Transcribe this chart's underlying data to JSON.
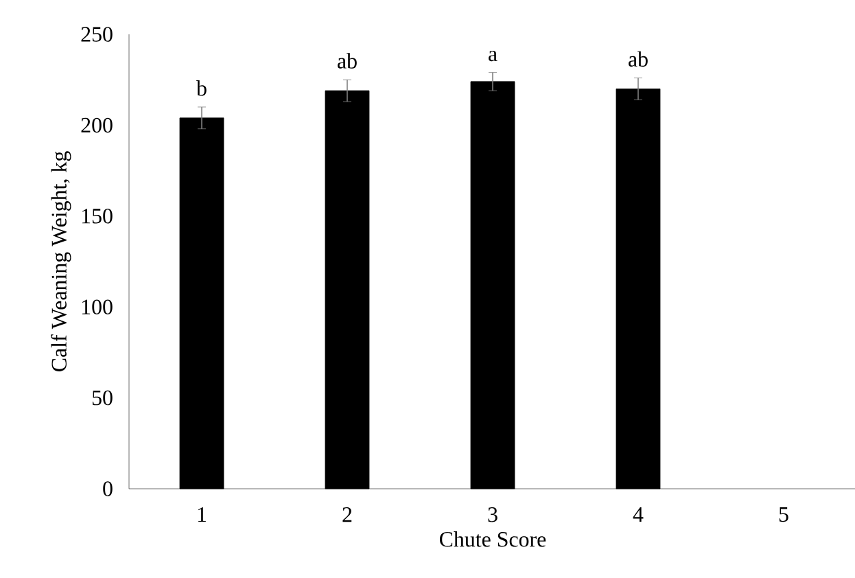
{
  "chart_data": {
    "type": "bar",
    "xlabel": "Chute Score",
    "ylabel": "Calf Weaning Weight, kg",
    "categories": [
      "1",
      "2",
      "3",
      "4",
      "5"
    ],
    "values": [
      204,
      219,
      224,
      220,
      null
    ],
    "errors": [
      6,
      6,
      5,
      6,
      null
    ],
    "value_labels": [
      "b",
      "ab",
      "a",
      "ab",
      null
    ],
    "color": "#000000",
    "ylim": [
      0,
      250
    ],
    "yticks": [
      0,
      50,
      100,
      150,
      200,
      250
    ],
    "grid": false
  }
}
